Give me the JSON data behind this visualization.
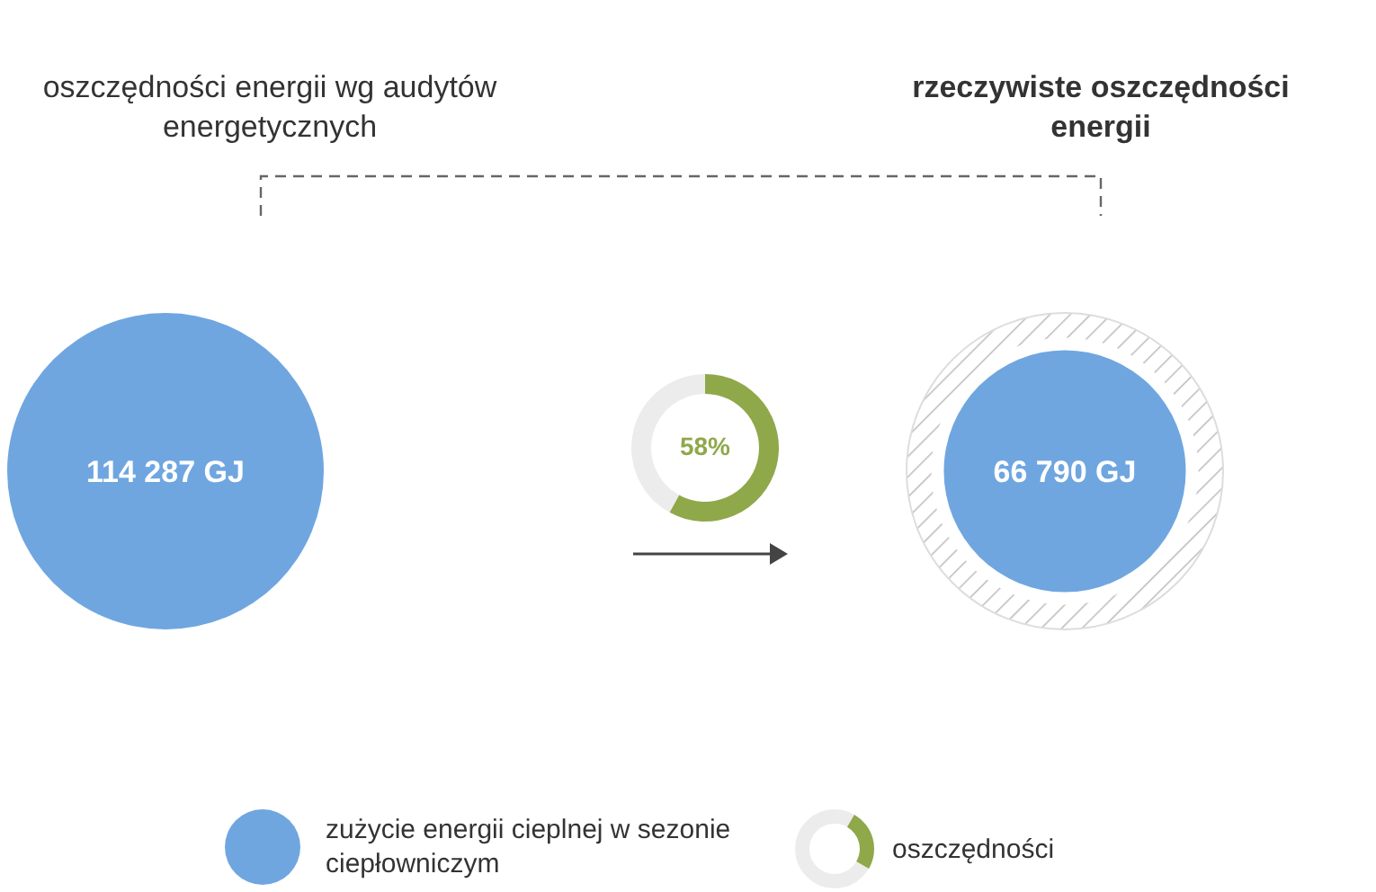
{
  "chart_data": [
    {
      "type": "other",
      "categories": [
        "oszczędności energii wg audytów energetycznych",
        "rzeczywiste oszczędności energii"
      ],
      "legend": "bottom",
      "series": [
        {
          "name": "zużycie energii cieplnej w sezonie ciepłowniczym",
          "color": "#6fa6e0",
          "values": [
            114287,
            66790
          ],
          "value_labels": [
            "114 287 GJ",
            "66 790 GJ"
          ]
        }
      ]
    },
    {
      "type": "donut",
      "categories": [
        "oszczędności",
        null
      ],
      "values": [
        58,
        42
      ],
      "colors": [
        "#8fa84a",
        "#ececec"
      ],
      "value_labels": [
        "58%",
        null
      ],
      "legend": "bottom"
    }
  ]
}
